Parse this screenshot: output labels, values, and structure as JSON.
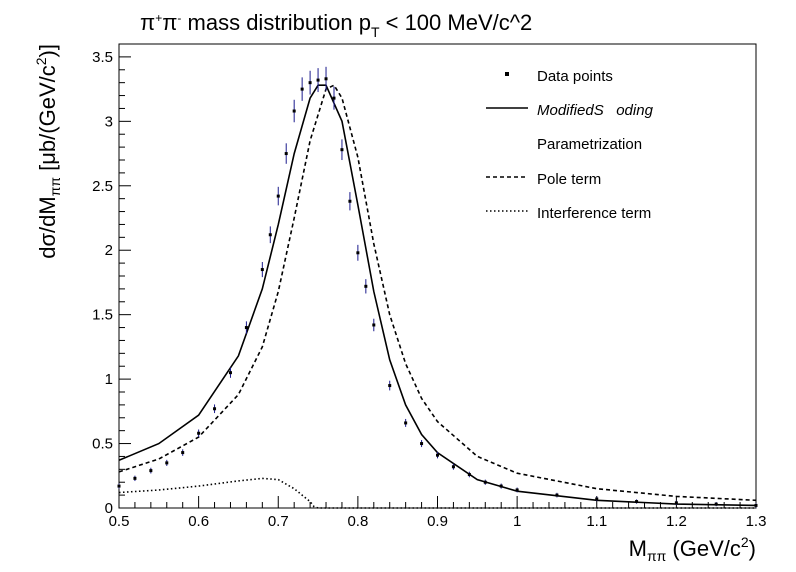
{
  "chart_data": {
    "type": "scatter",
    "title": "π⁺π⁻ mass distribution p_T < 100 MeV/c^2",
    "title_parts": {
      "main": "mass distribution p",
      "sub": "T",
      "tail": " < 100 MeV/c^2",
      "pion": "π",
      "plus": "+",
      "minus": "-"
    },
    "xlabel": {
      "base": "M",
      "sub": "ππ",
      "tail": " (GeV/c",
      "sup": "2",
      "close": ")"
    },
    "ylabel": {
      "base": "dσ/dM",
      "sub": "ππ",
      "tail": " [μb/(GeV/c",
      "sup": "2",
      "close": ")]"
    },
    "xlim": [
      0.5,
      1.3
    ],
    "ylim": [
      0,
      3.6
    ],
    "x_ticks": [
      "0.5",
      "0.6",
      "0.7",
      "0.8",
      "0.9",
      "1",
      "1.1",
      "1.2",
      "1.3"
    ],
    "y_ticks": [
      "0",
      "0.5",
      "1",
      "1.5",
      "2",
      "2.5",
      "3",
      "3.5"
    ],
    "x_tick_values": [
      0.5,
      0.6,
      0.7,
      0.8,
      0.9,
      1.0,
      1.1,
      1.2,
      1.3
    ],
    "y_tick_values": [
      0,
      0.5,
      1.0,
      1.5,
      2.0,
      2.5,
      3.0,
      3.5
    ],
    "legend": {
      "position": "top-right",
      "entries": [
        {
          "label": "Data points",
          "style": "marker"
        },
        {
          "label": "ModifiedS   oding",
          "style": "solid"
        },
        {
          "label": "Parametrization",
          "style": "none"
        },
        {
          "label": "Pole term",
          "style": "dashed"
        },
        {
          "label": "Interference term",
          "style": "dotted"
        }
      ]
    },
    "series": [
      {
        "name": "Data points",
        "style": "marker",
        "x": [
          0.5,
          0.52,
          0.54,
          0.56,
          0.58,
          0.6,
          0.62,
          0.64,
          0.66,
          0.68,
          0.69,
          0.7,
          0.71,
          0.72,
          0.73,
          0.74,
          0.75,
          0.76,
          0.77,
          0.78,
          0.79,
          0.8,
          0.81,
          0.82,
          0.84,
          0.86,
          0.88,
          0.9,
          0.92,
          0.94,
          0.96,
          0.98,
          1.0,
          1.05,
          1.1,
          1.15,
          1.2,
          1.25,
          1.3
        ],
        "y": [
          0.17,
          0.23,
          0.29,
          0.35,
          0.43,
          0.58,
          0.77,
          1.05,
          1.4,
          1.85,
          2.12,
          2.42,
          2.75,
          3.08,
          3.25,
          3.3,
          3.32,
          3.33,
          3.18,
          2.78,
          2.38,
          1.98,
          1.72,
          1.42,
          0.95,
          0.66,
          0.5,
          0.41,
          0.32,
          0.26,
          0.2,
          0.17,
          0.14,
          0.1,
          0.07,
          0.05,
          0.04,
          0.03,
          0.02
        ]
      },
      {
        "name": "ModifiedS   oding",
        "style": "solid",
        "x": [
          0.5,
          0.55,
          0.6,
          0.65,
          0.68,
          0.7,
          0.72,
          0.74,
          0.75,
          0.76,
          0.78,
          0.8,
          0.82,
          0.84,
          0.86,
          0.88,
          0.9,
          0.95,
          1.0,
          1.1,
          1.2,
          1.3
        ],
        "y": [
          0.37,
          0.5,
          0.72,
          1.18,
          1.7,
          2.2,
          2.75,
          3.18,
          3.28,
          3.28,
          3.0,
          2.35,
          1.68,
          1.15,
          0.8,
          0.57,
          0.43,
          0.22,
          0.13,
          0.06,
          0.03,
          0.02
        ]
      },
      {
        "name": "Pole term",
        "style": "dashed",
        "x": [
          0.5,
          0.55,
          0.6,
          0.65,
          0.68,
          0.7,
          0.72,
          0.74,
          0.76,
          0.77,
          0.78,
          0.8,
          0.82,
          0.84,
          0.86,
          0.88,
          0.9,
          0.95,
          1.0,
          1.1,
          1.2,
          1.3
        ],
        "y": [
          0.28,
          0.38,
          0.55,
          0.88,
          1.25,
          1.68,
          2.25,
          2.85,
          3.25,
          3.28,
          3.18,
          2.72,
          2.05,
          1.5,
          1.12,
          0.85,
          0.67,
          0.4,
          0.27,
          0.15,
          0.09,
          0.06
        ]
      },
      {
        "name": "Interference term",
        "style": "dotted",
        "x": [
          0.5,
          0.55,
          0.6,
          0.65,
          0.68,
          0.7,
          0.72,
          0.74,
          0.745,
          0.75,
          0.8,
          0.9,
          1.0,
          1.1,
          1.2,
          1.3
        ],
        "y": [
          0.12,
          0.14,
          0.17,
          0.21,
          0.23,
          0.22,
          0.15,
          0.05,
          0.01,
          0.0,
          0.0,
          0.0,
          0.0,
          0.0,
          0.0,
          0.0
        ]
      }
    ]
  }
}
